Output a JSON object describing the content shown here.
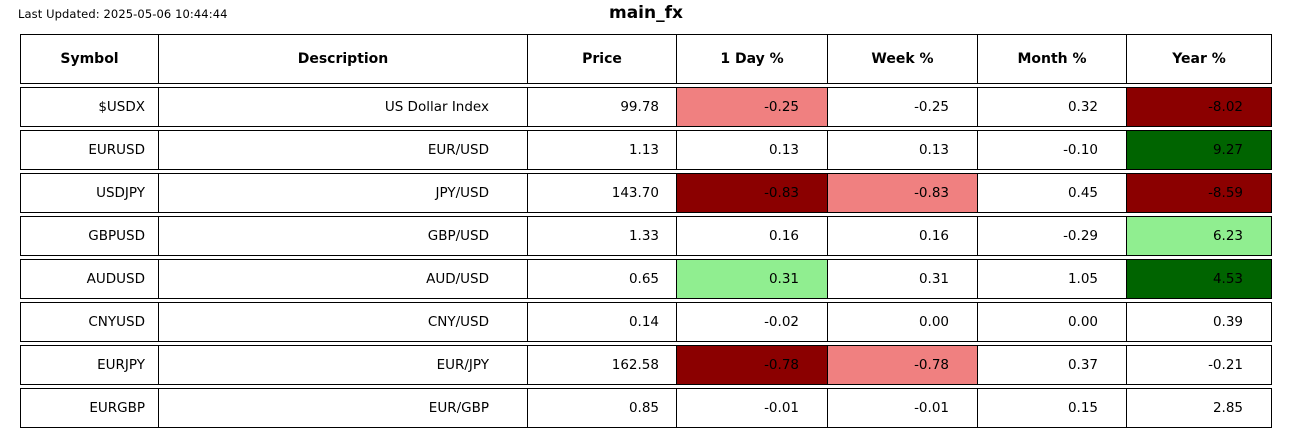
{
  "header": {
    "last_updated": "Last Updated: 2025-05-06 10:44:44",
    "title": "main_fx"
  },
  "colors": {
    "light_red": "#F08080",
    "dark_red": "#8B0000",
    "light_green": "#90EE90",
    "dark_green": "#006400",
    "border": "#000000",
    "background": "#FFFFFF"
  },
  "chart_data": {
    "type": "table",
    "title": "main_fx",
    "columns": [
      "Symbol",
      "Description",
      "Price",
      "1 Day %",
      "Week %",
      "Month %",
      "Year %"
    ],
    "column_keys": [
      "symbol",
      "description",
      "price",
      "day",
      "week",
      "month",
      "year"
    ],
    "rows": [
      {
        "symbol": "$USDX",
        "description": "US Dollar Index",
        "price": "99.78",
        "day": "-0.25",
        "week": "-0.25",
        "month": "0.32",
        "year": "-8.02",
        "bg": {
          "day": "light_red",
          "year": "dark_red"
        }
      },
      {
        "symbol": "EURUSD",
        "description": "EUR/USD",
        "price": "1.13",
        "day": "0.13",
        "week": "0.13",
        "month": "-0.10",
        "year": "9.27",
        "bg": {
          "year": "dark_green"
        }
      },
      {
        "symbol": "USDJPY",
        "description": "JPY/USD",
        "price": "143.70",
        "day": "-0.83",
        "week": "-0.83",
        "month": "0.45",
        "year": "-8.59",
        "bg": {
          "day": "dark_red",
          "week": "light_red",
          "year": "dark_red"
        }
      },
      {
        "symbol": "GBPUSD",
        "description": "GBP/USD",
        "price": "1.33",
        "day": "0.16",
        "week": "0.16",
        "month": "-0.29",
        "year": "6.23",
        "bg": {
          "year": "light_green"
        }
      },
      {
        "symbol": "AUDUSD",
        "description": "AUD/USD",
        "price": "0.65",
        "day": "0.31",
        "week": "0.31",
        "month": "1.05",
        "year": "4.53",
        "bg": {
          "day": "light_green",
          "year": "dark_green"
        }
      },
      {
        "symbol": "CNYUSD",
        "description": "CNY/USD",
        "price": "0.14",
        "day": "-0.02",
        "week": "0.00",
        "month": "0.00",
        "year": "0.39",
        "bg": {}
      },
      {
        "symbol": "EURJPY",
        "description": "EUR/JPY",
        "price": "162.58",
        "day": "-0.78",
        "week": "-0.78",
        "month": "0.37",
        "year": "-0.21",
        "bg": {
          "day": "dark_red",
          "week": "light_red"
        }
      },
      {
        "symbol": "EURGBP",
        "description": "EUR/GBP",
        "price": "0.85",
        "day": "-0.01",
        "week": "-0.01",
        "month": "0.15",
        "year": "2.85",
        "bg": {}
      }
    ]
  }
}
